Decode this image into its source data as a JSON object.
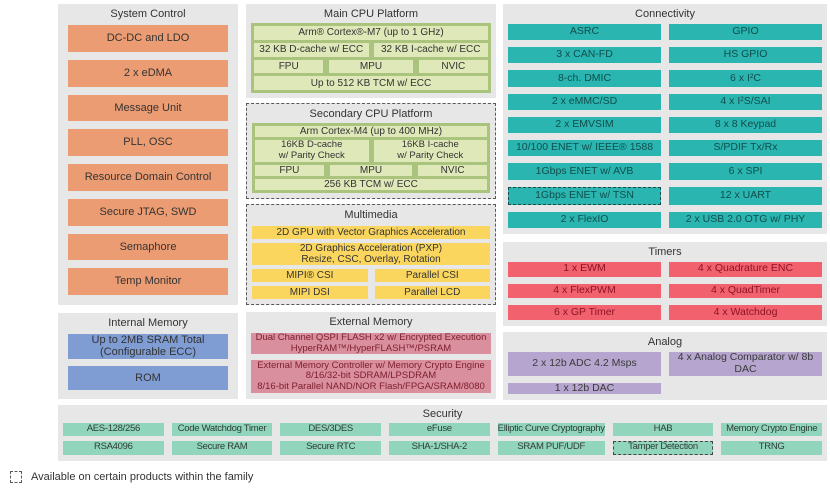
{
  "colors": {
    "panel_gray": "#e7e7e8",
    "system_orange": "#ec9c73",
    "memory_blue": "#7f9cd3",
    "cpu_green_dark": "#abc47d",
    "cpu_green_light": "#dee8b8",
    "multimedia_yellow": "#fbd65f",
    "external_memory_mauve": "#da8f9e",
    "connectivity_teal": "#2ab5b0",
    "timers_red": "#f2616e",
    "analog_purple": "#b6a6cf",
    "security_mint": "#92d5bd"
  },
  "system_control": {
    "title": "System Control",
    "items": [
      "DC-DC and LDO",
      "2 x eDMA",
      "Message Unit",
      "PLL, OSC",
      "Resource Domain Control",
      "Secure JTAG, SWD",
      "Semaphore",
      "Temp Monitor"
    ]
  },
  "internal_memory": {
    "title": "Internal Memory",
    "items": [
      "Up to 2MB SRAM Total\n(Configurable ECC)",
      "ROM"
    ]
  },
  "main_cpu": {
    "title": "Main CPU Platform",
    "core": "Arm® Cortex®-M7 (up to 1 GHz)",
    "dcache": "32 KB D-cache w/ ECC",
    "icache": "32 KB I-cache w/ ECC",
    "fpu": "FPU",
    "mpu": "MPU",
    "nvic": "NVIC",
    "tcm": "Up to 512 KB TCM w/ ECC"
  },
  "secondary_cpu": {
    "title": "Secondary CPU Platform",
    "core": "Arm Cortex-M4 (up to 400 MHz)",
    "dcache": "16KB D-cache\nw/ Parity Check",
    "icache": "16KB I-cache\nw/ Parity Check",
    "fpu": "FPU",
    "mpu": "MPU",
    "nvic": "NVIC",
    "tcm": "256 KB TCM w/ ECC"
  },
  "multimedia": {
    "title": "Multimedia",
    "gpu": "2D GPU with Vector Graphics Acceleration",
    "pxp": "2D Graphics Acceleration (PXP)\nResize, CSC, Overlay, Rotation",
    "mipi_csi": "MIPI® CSI",
    "parallel_csi": "Parallel CSI",
    "mipi_dsi": "MIPI DSI",
    "parallel_lcd": "Parallel LCD"
  },
  "external_memory": {
    "title": "External Memory",
    "items": [
      "Dual Channel QSPI FLASH x2 w/ Encrypted Execution\nHyperRAM™/HyperFLASH™/PSRAM",
      "External Memory Controller w/ Memory Crypto Engine\n8/16/32-bit SDRAM/LPSDRAM\n8/16-bit Parallel NAND/NOR Flash/FPGA/SRAM/8080"
    ]
  },
  "connectivity": {
    "title": "Connectivity",
    "left": [
      "ASRC",
      "3 x CAN-FD",
      "8-ch. DMIC",
      "2 x eMMC/SD",
      "2 x EMVSIM",
      "10/100 ENET w/ IEEE® 1588",
      "1Gbps ENET w/ AVB",
      "1Gbps ENET w/ TSN",
      "2 x FlexIO"
    ],
    "right": [
      "GPIO",
      "HS GPIO",
      "6 x I²C",
      "4 x I²S/SAI",
      "8 x 8 Keypad",
      "S/PDIF Tx/Rx",
      "6 x SPI",
      "12 x UART",
      "2 x USB 2.0 OTG w/ PHY"
    ]
  },
  "timers": {
    "title": "Timers",
    "left": [
      "1 x EWM",
      "4 x FlexPWM",
      "6 x GP Timer"
    ],
    "right": [
      "4 x Quadrature ENC",
      "4 x QuadTimer",
      "4 x Watchdog"
    ]
  },
  "analog": {
    "title": "Analog",
    "row1": [
      "2 x 12b ADC 4.2 Msps",
      "4 x Analog Comparator w/ 8b DAC"
    ],
    "row2": [
      "1 x 12b DAC"
    ]
  },
  "security": {
    "title": "Security",
    "row1": [
      "AES-128/256",
      "Code Watchdog Timer",
      "DES/3DES",
      "eFuse",
      "Elliptic Curve Cryptography",
      "HAB",
      "Memory Crypto Engine"
    ],
    "row2": [
      "RSA4096",
      "Secure RAM",
      "Secure RTC",
      "SHA-1/SHA-2",
      "SRAM PUF/UDF",
      "Tamper Detection",
      "TRNG"
    ]
  },
  "legend": {
    "label": "Available on certain products within the family"
  }
}
